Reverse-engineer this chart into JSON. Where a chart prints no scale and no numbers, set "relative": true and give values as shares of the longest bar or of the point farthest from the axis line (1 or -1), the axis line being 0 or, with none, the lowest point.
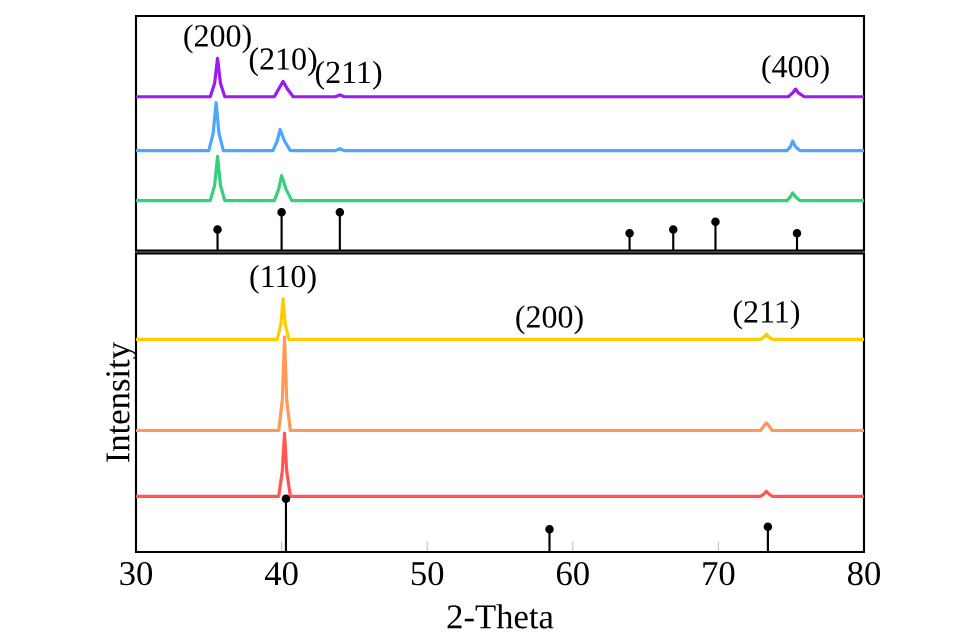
{
  "chart_data": [
    {
      "type": "line",
      "relative": true,
      "xlim": [
        30,
        80
      ],
      "tick_labels": false,
      "series": [
        {
          "color": "#9b1cf2",
          "x": [
            30,
            35.1,
            35.4,
            35.6,
            35.8,
            36.1,
            39.5,
            39.8,
            40.1,
            40.4,
            40.8,
            43.7,
            44.0,
            44.3,
            74.8,
            75.1,
            75.3,
            75.5,
            75.9,
            80
          ],
          "values": [
            0.8,
            0.8,
            0.87,
            1.0,
            0.87,
            0.8,
            0.8,
            0.84,
            0.88,
            0.84,
            0.8,
            0.8,
            0.81,
            0.8,
            0.8,
            0.82,
            0.84,
            0.82,
            0.8,
            0.8
          ]
        },
        {
          "color": "#4da6ff",
          "x": [
            30,
            35.0,
            35.3,
            35.5,
            35.7,
            36.0,
            39.4,
            39.7,
            39.9,
            40.2,
            40.6,
            43.7,
            44.0,
            44.3,
            74.7,
            74.95,
            75.1,
            75.3,
            75.6,
            80
          ],
          "values": [
            0.52,
            0.52,
            0.61,
            0.77,
            0.61,
            0.52,
            0.52,
            0.57,
            0.63,
            0.57,
            0.52,
            0.52,
            0.53,
            0.52,
            0.52,
            0.54,
            0.57,
            0.54,
            0.52,
            0.52
          ]
        },
        {
          "color": "#33d17a",
          "x": [
            30,
            35.1,
            35.4,
            35.6,
            35.8,
            36.1,
            39.5,
            39.8,
            40.0,
            40.3,
            40.7,
            74.7,
            74.95,
            75.1,
            75.3,
            75.6,
            80
          ],
          "values": [
            0.26,
            0.26,
            0.34,
            0.49,
            0.34,
            0.26,
            0.26,
            0.32,
            0.39,
            0.32,
            0.26,
            0.26,
            0.28,
            0.3,
            0.28,
            0.26,
            0.26
          ]
        },
        {
          "type": "lollipop",
          "color": "#000000",
          "x": [
            35.6,
            40.0,
            44.0,
            63.9,
            66.9,
            69.8,
            75.4
          ],
          "values": [
            0.11,
            0.2,
            0.2,
            0.09,
            0.11,
            0.15,
            0.09
          ]
        }
      ],
      "annotations": [
        {
          "text": "(200)",
          "x": 35.6,
          "y": 1.0
        },
        {
          "text": "(210)",
          "x": 40.1,
          "y": 0.88
        },
        {
          "text": "(211)",
          "x": 44.6,
          "y": 0.81
        },
        {
          "text": "(400)",
          "x": 75.3,
          "y": 0.84
        }
      ]
    },
    {
      "type": "line",
      "relative": true,
      "xlim": [
        30,
        80
      ],
      "xticks": [
        30,
        40,
        50,
        60,
        70,
        80
      ],
      "tick_labels": "x",
      "xlabel": "2-Theta",
      "ylabel": "Intensity",
      "series": [
        {
          "color": "#ffcc00",
          "x": [
            30,
            39.7,
            39.95,
            40.1,
            40.25,
            40.5,
            72.9,
            73.15,
            73.3,
            73.45,
            73.7,
            80
          ],
          "values": [
            0.84,
            0.84,
            0.9,
            1.0,
            0.9,
            0.84,
            0.84,
            0.85,
            0.86,
            0.85,
            0.84,
            0.84
          ]
        },
        {
          "color": "#ff9955",
          "x": [
            30,
            39.8,
            40.05,
            40.2,
            40.35,
            40.6,
            72.9,
            73.15,
            73.3,
            73.45,
            73.7,
            80
          ],
          "values": [
            0.48,
            0.48,
            0.6,
            0.85,
            0.6,
            0.48,
            0.48,
            0.5,
            0.51,
            0.5,
            0.48,
            0.48
          ]
        },
        {
          "color": "#ff5555",
          "x": [
            30,
            39.8,
            40.05,
            40.2,
            40.35,
            40.6,
            72.9,
            73.15,
            73.3,
            73.45,
            73.7,
            80
          ],
          "values": [
            0.22,
            0.22,
            0.32,
            0.47,
            0.32,
            0.22,
            0.22,
            0.23,
            0.24,
            0.23,
            0.22,
            0.22
          ]
        },
        {
          "type": "lollipop",
          "color": "#000000",
          "x": [
            40.3,
            58.4,
            73.4
          ],
          "values": [
            0.21,
            0.09,
            0.1
          ]
        }
      ],
      "annotations": [
        {
          "text": "(110)",
          "x": 40.1,
          "y": 1.0
        },
        {
          "text": "(200)",
          "x": 58.4,
          "y": 0.84
        },
        {
          "text": "(211)",
          "x": 73.3,
          "y": 0.86
        }
      ]
    }
  ]
}
